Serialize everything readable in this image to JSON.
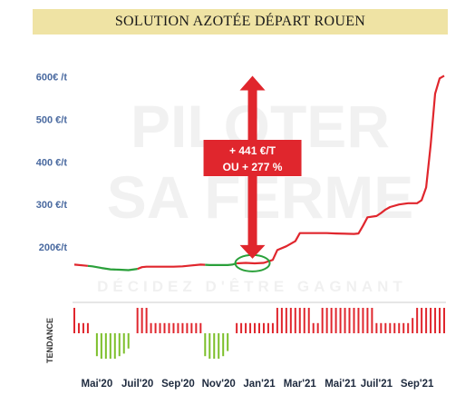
{
  "title": "SOLUTION AZOTÉE DÉPART ROUEN",
  "watermark": {
    "line1": "PILOTER",
    "line2": "SA FERME",
    "tagline": "DÉCIDEZ D'ÊTRE GAGNANT"
  },
  "callout": {
    "line1": "+ 441 €/T",
    "line2": "OU + 277 %"
  },
  "tendance_label": "TENDANCE",
  "colors": {
    "up": "#e0262d",
    "down": "#7cbf2a",
    "flat": "#2aa03a",
    "title_bg": "#efe3a4",
    "tick": "#4a6aa0"
  },
  "chart_data": {
    "type": "line",
    "title": "SOLUTION AZOTÉE DÉPART ROUEN",
    "ylim": [
      130,
      620
    ],
    "yticks": [
      {
        "value": 200,
        "label": "200€/t"
      },
      {
        "value": 300,
        "label": "300 €/t"
      },
      {
        "value": 400,
        "label": "400 €/t"
      },
      {
        "value": 500,
        "label": "500 €/t"
      },
      {
        "value": 600,
        "label": "600€ /t"
      }
    ],
    "xticks": [
      {
        "week": 5,
        "label": "Mai'20"
      },
      {
        "week": 14,
        "label": "Juil'20"
      },
      {
        "week": 23,
        "label": "Sep'20"
      },
      {
        "week": 32,
        "label": "Nov'20"
      },
      {
        "week": 41,
        "label": "Jan'21"
      },
      {
        "week": 50,
        "label": "Mar'21"
      },
      {
        "week": 59,
        "label": "Mai'21"
      },
      {
        "week": 67,
        "label": "Juil'21"
      },
      {
        "week": 76,
        "label": "Sep'21"
      }
    ],
    "xlim": [
      0,
      82
    ],
    "series": [
      {
        "values": [
          [
            0,
            159
          ],
          [
            2,
            157
          ],
          [
            4,
            155
          ],
          [
            6,
            151
          ],
          [
            8,
            148
          ],
          [
            10,
            147
          ],
          [
            12,
            146
          ],
          [
            14,
            149
          ],
          [
            15,
            153
          ],
          [
            16,
            154
          ],
          [
            18,
            154
          ],
          [
            20,
            154
          ],
          [
            22,
            154
          ],
          [
            24,
            155
          ],
          [
            26,
            157
          ],
          [
            28,
            159
          ],
          [
            30,
            158
          ],
          [
            32,
            158
          ],
          [
            34,
            158
          ],
          [
            35,
            159
          ],
          [
            36,
            162
          ],
          [
            38,
            163
          ],
          [
            40,
            162
          ],
          [
            42,
            163
          ],
          [
            44,
            170
          ],
          [
            45,
            193
          ],
          [
            47,
            202
          ],
          [
            49,
            214
          ],
          [
            50,
            233
          ],
          [
            54,
            233
          ],
          [
            56,
            233
          ],
          [
            58,
            232
          ],
          [
            62,
            231
          ],
          [
            63,
            232
          ],
          [
            64,
            250
          ],
          [
            65,
            270
          ],
          [
            67,
            273
          ],
          [
            68,
            280
          ],
          [
            69,
            288
          ],
          [
            70,
            294
          ],
          [
            72,
            300
          ],
          [
            74,
            303
          ],
          [
            76,
            303
          ],
          [
            77,
            310
          ],
          [
            78,
            340
          ],
          [
            79,
            440
          ],
          [
            80,
            560
          ],
          [
            81,
            596
          ],
          [
            82,
            602
          ]
        ]
      }
    ],
    "color_segments": [
      {
        "from": 0,
        "to": 3,
        "color": "up"
      },
      {
        "from": 3,
        "to": 14,
        "color": "flat"
      },
      {
        "from": 14,
        "to": 29,
        "color": "up"
      },
      {
        "from": 29,
        "to": 36,
        "color": "flat"
      },
      {
        "from": 36,
        "to": 82,
        "color": "up"
      }
    ],
    "tendance": [
      {
        "week": 0,
        "v": 1
      },
      {
        "week": 1,
        "v": 0.4
      },
      {
        "week": 2,
        "v": 0.4
      },
      {
        "week": 3,
        "v": 0.4
      },
      {
        "week": 5,
        "v": -0.9
      },
      {
        "week": 6,
        "v": -1
      },
      {
        "week": 7,
        "v": -1
      },
      {
        "week": 8,
        "v": -1
      },
      {
        "week": 9,
        "v": -1
      },
      {
        "week": 10,
        "v": -0.9
      },
      {
        "week": 11,
        "v": -0.8
      },
      {
        "week": 12,
        "v": -0.6
      },
      {
        "week": 14,
        "v": 1
      },
      {
        "week": 15,
        "v": 1
      },
      {
        "week": 16,
        "v": 1
      },
      {
        "week": 17,
        "v": 0.4
      },
      {
        "week": 18,
        "v": 0.4
      },
      {
        "week": 19,
        "v": 0.4
      },
      {
        "week": 20,
        "v": 0.4
      },
      {
        "week": 21,
        "v": 0.4
      },
      {
        "week": 22,
        "v": 0.4
      },
      {
        "week": 23,
        "v": 0.4
      },
      {
        "week": 24,
        "v": 0.4
      },
      {
        "week": 25,
        "v": 0.4
      },
      {
        "week": 26,
        "v": 0.4
      },
      {
        "week": 27,
        "v": 0.4
      },
      {
        "week": 28,
        "v": 0.4
      },
      {
        "week": 29,
        "v": -0.9
      },
      {
        "week": 30,
        "v": -1
      },
      {
        "week": 31,
        "v": -1
      },
      {
        "week": 32,
        "v": -1
      },
      {
        "week": 33,
        "v": -0.9
      },
      {
        "week": 34,
        "v": -0.7
      },
      {
        "week": 36,
        "v": 0.4
      },
      {
        "week": 37,
        "v": 0.4
      },
      {
        "week": 38,
        "v": 0.4
      },
      {
        "week": 39,
        "v": 0.4
      },
      {
        "week": 40,
        "v": 0.4
      },
      {
        "week": 41,
        "v": 0.4
      },
      {
        "week": 42,
        "v": 0.4
      },
      {
        "week": 43,
        "v": 0.4
      },
      {
        "week": 44,
        "v": 0.4
      },
      {
        "week": 45,
        "v": 1
      },
      {
        "week": 46,
        "v": 1
      },
      {
        "week": 47,
        "v": 1
      },
      {
        "week": 48,
        "v": 1
      },
      {
        "week": 49,
        "v": 1
      },
      {
        "week": 50,
        "v": 1
      },
      {
        "week": 51,
        "v": 1
      },
      {
        "week": 52,
        "v": 1
      },
      {
        "week": 53,
        "v": 0.4
      },
      {
        "week": 54,
        "v": 0.4
      },
      {
        "week": 55,
        "v": 1
      },
      {
        "week": 56,
        "v": 1
      },
      {
        "week": 57,
        "v": 1
      },
      {
        "week": 58,
        "v": 1
      },
      {
        "week": 59,
        "v": 1
      },
      {
        "week": 60,
        "v": 1
      },
      {
        "week": 61,
        "v": 1
      },
      {
        "week": 62,
        "v": 1
      },
      {
        "week": 63,
        "v": 1
      },
      {
        "week": 64,
        "v": 1
      },
      {
        "week": 65,
        "v": 1
      },
      {
        "week": 66,
        "v": 1
      },
      {
        "week": 67,
        "v": 0.4
      },
      {
        "week": 68,
        "v": 0.4
      },
      {
        "week": 69,
        "v": 0.4
      },
      {
        "week": 70,
        "v": 0.4
      },
      {
        "week": 71,
        "v": 0.4
      },
      {
        "week": 72,
        "v": 0.4
      },
      {
        "week": 73,
        "v": 0.4
      },
      {
        "week": 74,
        "v": 0.4
      },
      {
        "week": 75,
        "v": 0.6
      },
      {
        "week": 76,
        "v": 1
      },
      {
        "week": 77,
        "v": 1
      },
      {
        "week": 78,
        "v": 1
      },
      {
        "week": 79,
        "v": 1
      },
      {
        "week": 80,
        "v": 1
      },
      {
        "week": 81,
        "v": 1
      },
      {
        "week": 82,
        "v": 1
      }
    ]
  }
}
